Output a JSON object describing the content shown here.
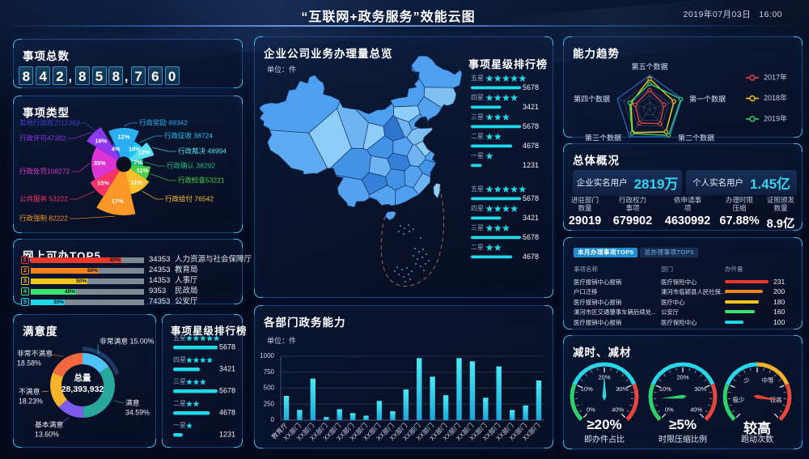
{
  "header": {
    "title": "“互联网+政务服务”效能云图",
    "date": "2019年07月03日",
    "time": "16:00"
  },
  "panels": {
    "total": {
      "title": "事项总数",
      "value": "842,858,760"
    },
    "types": {
      "title": "事项类型"
    },
    "online_top5": {
      "title": "网上可办TOP5"
    },
    "satisfaction": {
      "title": "满意度"
    },
    "star_rank_left": {
      "title": "事项星级排行榜"
    },
    "map": {
      "title": "企业公司业务办理量总览",
      "unit": "单位：件",
      "list_title": "事项星级排行榜"
    },
    "dept": {
      "title": "各部门政务能力",
      "unit": "单位：件"
    },
    "radar": {
      "title": "能力趋势"
    },
    "overview": {
      "title": "总体概况",
      "boxes": [
        {
          "label": "企业实名用户",
          "value": "2819万"
        },
        {
          "label": "个人实名用户",
          "value": "1.45亿"
        }
      ],
      "stats": [
        {
          "line1": "进驻部门",
          "line2": "数量",
          "value": "29019"
        },
        {
          "line1": "行政权力",
          "line2": "事项",
          "value": "679902"
        },
        {
          "line1": "依申请事",
          "line2": "项",
          "value": "4630992"
        },
        {
          "line1": "办理时限",
          "line2": "压缩",
          "value": "67.88%"
        },
        {
          "line1": "证照颁发",
          "line2": "数量",
          "value": "8.9亿"
        }
      ]
    },
    "top_table": {
      "tabs": [
        "本月办理事项TOP5",
        "总办理事项TOP5"
      ],
      "active_tab": 0
    },
    "gauges": {
      "title": "减时、减材"
    }
  },
  "chart_data": [
    {
      "id": "item_types_rose",
      "type": "pie",
      "title": "事项类型",
      "items": [
        {
          "label": "行政奖励",
          "value": 89342,
          "percent": "12%",
          "color": "#29aef2",
          "radius": 45
        },
        {
          "label": "行政征收",
          "value": 38724,
          "percent": "10%",
          "color": "#21c4f5",
          "radius": 31
        },
        {
          "label": "行政裁决",
          "value": 48994,
          "percent": "12%",
          "color": "#58dff2",
          "radius": 39
        },
        {
          "label": "行政确认",
          "value": 38292,
          "percent": "7%",
          "color": "#20bd7e",
          "radius": 24
        },
        {
          "label": "行政检查",
          "value": 53221,
          "percent": "11%",
          "color": "#49d249",
          "radius": 33
        },
        {
          "label": "行政给付",
          "value": 76542,
          "percent": "11%",
          "color": "#fbc02d",
          "radius": 38
        },
        {
          "label": "行政强制",
          "value": 82222,
          "percent": "17%",
          "color": "#fb9827",
          "radius": 63
        },
        {
          "label": "公共服务",
          "value": 53222,
          "percent": "15%",
          "color": "#f8336a",
          "radius": 47
        },
        {
          "label": "行政处罚",
          "value": 108272,
          "percent": "35%",
          "color": "#dd35d5",
          "radius": 40
        },
        {
          "label": "行政许可",
          "value": 47382,
          "percent": "16%",
          "color": "#9137ef",
          "radius": 54
        },
        {
          "label": "其他行政权力",
          "value": 12382,
          "percent": "4%",
          "color": "#3d3fd4",
          "radius": 28
        }
      ],
      "label_texts": [
        "行政奖励 89342",
        "行政征收 38724",
        "行政裁决 48994",
        "行政确认 38292",
        "行政检查53221",
        "行政给付 76542",
        "行政强制 82222",
        "公共服务 53222",
        "行政处罚108272",
        "行政许可47382",
        "其他行政权力12382"
      ]
    },
    {
      "id": "online_top5_bars",
      "type": "bar",
      "title": "网上可办TOP5",
      "rows": [
        {
          "rank": "1",
          "percent": 80,
          "value": "34353",
          "department": "人力资源与社会保障厅",
          "color": "#e8392c"
        },
        {
          "rank": "2",
          "percent": 60,
          "value": "24353",
          "department": "教育局",
          "color": "#f5821f"
        },
        {
          "rank": "3",
          "percent": 50,
          "value": "14353",
          "department": "人事厅",
          "color": "#f5c51f"
        },
        {
          "rank": "4",
          "percent": 40,
          "value": "9353",
          "department": "民政局",
          "color": "#3ee06e"
        },
        {
          "rank": "5",
          "percent": 30,
          "value": "74353",
          "department": "公安厅",
          "color": "#1fd8e8"
        }
      ]
    },
    {
      "id": "satisfaction_donut",
      "type": "pie",
      "title": "满意度",
      "center": {
        "label": "总量",
        "value": "28,393,932"
      },
      "slices": [
        {
          "label": "非常满意",
          "percent_label": "15.00%",
          "value": 15.0,
          "color": "#4fc3f7"
        },
        {
          "label": "满意",
          "percent_label": "34.59%",
          "value": 34.59,
          "color": "#2aa79b"
        },
        {
          "label": "基本满意",
          "percent_label": "13.60%",
          "value": 13.6,
          "color": "#7e5bef"
        },
        {
          "label": "不满意",
          "percent_label": "18.23%",
          "value": 18.23,
          "color": "#f5b32c"
        },
        {
          "label": "非常不满意",
          "percent_label": "18.58%",
          "value": 18.58,
          "color": "#f2693f"
        }
      ]
    },
    {
      "id": "star_rating_left",
      "type": "bar",
      "title": "事项星级排行榜",
      "rows": [
        {
          "label": "五星",
          "stars": 5,
          "value": "5678"
        },
        {
          "label": "四星",
          "stars": 4,
          "value": "3421"
        },
        {
          "label": "三星",
          "stars": 3,
          "value": "5678"
        },
        {
          "label": "二星",
          "stars": 2,
          "value": "4678"
        },
        {
          "label": "一星",
          "stars": 1,
          "value": "1231"
        }
      ]
    },
    {
      "id": "map_star_rating",
      "type": "bar",
      "title": "事项星级排行榜",
      "rows": [
        {
          "label": "五星",
          "stars": 5,
          "value": "5678"
        },
        {
          "label": "四星",
          "stars": 4,
          "value": "3421"
        },
        {
          "label": "三星",
          "stars": 3,
          "value": "5678"
        },
        {
          "label": "二星",
          "stars": 2,
          "value": "4678"
        },
        {
          "label": "一星",
          "stars": 1,
          "value": "1231"
        },
        {
          "label": "五星",
          "stars": 5,
          "value": "5678"
        },
        {
          "label": "四星",
          "stars": 4,
          "value": "3421"
        },
        {
          "label": "三星",
          "stars": 3,
          "value": "5678"
        },
        {
          "label": "二星",
          "stars": 2,
          "value": "4678"
        }
      ]
    },
    {
      "id": "dept_capability",
      "type": "bar",
      "title": "各部门政务能力",
      "unit": "单位：件",
      "categories": [
        "教育厅",
        "XX部门",
        "XX部门",
        "XX部门",
        "XX部门",
        "XX部门",
        "XX部门",
        "XX部门",
        "XX部门",
        "XX部门",
        "XX部门",
        "XX部门",
        "XX部门",
        "XX部门",
        "XX部门",
        "XX部门",
        "XX部门",
        "XX部门",
        "XX部门",
        "XX部门"
      ],
      "values": [
        380,
        160,
        650,
        50,
        170,
        110,
        70,
        300,
        140,
        480,
        970,
        680,
        390,
        970,
        920,
        350,
        840,
        160,
        230,
        620
      ],
      "ylim": [
        0,
        1000
      ],
      "yticks": [
        0,
        250,
        500,
        750,
        1000
      ]
    },
    {
      "id": "capability_radar",
      "type": "radar",
      "title": "能力趋势",
      "axes": [
        "第五个数据",
        "第一个数据",
        "第二个数据",
        "第三个数据",
        "第四个数据"
      ],
      "max": 1,
      "series": [
        {
          "name": "2017年",
          "color": "#e54445",
          "values": [
            0.56,
            0.45,
            0.52,
            0.5,
            0.45
          ]
        },
        {
          "name": "2018年",
          "color": "#f5c718",
          "values": [
            0.9,
            0.75,
            0.82,
            0.85,
            0.58
          ]
        },
        {
          "name": "2019年",
          "color": "#2ed06c",
          "values": [
            0.75,
            0.97,
            0.95,
            0.88,
            0.62
          ]
        }
      ]
    },
    {
      "id": "top_items_table",
      "type": "table",
      "tabs": [
        "本月办理事项TOP5",
        "总办理事项TOP5"
      ],
      "headers": [
        "事项名称",
        "部门",
        "办件量"
      ],
      "rows": [
        {
          "name": "医疗报销中心报销",
          "department": "医疗保险中心",
          "value": 231,
          "color": "#e8392c"
        },
        {
          "name": "户口迁移",
          "department": "漯河市临颍县人民社保...",
          "value": 200,
          "color": "#f5821f"
        },
        {
          "name": "医疗报销中心报销",
          "department": "医疗中心",
          "value": 180,
          "color": "#f5c51f"
        },
        {
          "name": "漯河市区交通肇事车辆后续处...",
          "department": "公安厅",
          "value": 160,
          "color": "#3ee06e"
        },
        {
          "name": "医疗报销中心报销",
          "department": "医疗保险中心",
          "value": 100,
          "color": "#1fd8e8"
        }
      ]
    },
    {
      "id": "reduction_gauges",
      "type": "gauge",
      "title": "减时、减材",
      "gauges": [
        {
          "tick_labels": [
            "0%",
            "10%",
            "20%",
            "30%",
            "40%"
          ],
          "needle": 0.5,
          "needle_color": "#29d5e8",
          "zones": [
            [
              0.25,
              "#2ed06c"
            ],
            [
              0.75,
              "#29d5e8"
            ],
            [
              1,
              "#e8453c"
            ]
          ],
          "value": "≥20%",
          "caption": "即办件占比"
        },
        {
          "tick_labels": [
            "0%",
            "10%",
            "20%",
            "30%",
            "40%"
          ],
          "needle": 0.15,
          "needle_color": "#2ed06c",
          "zones": [
            [
              0.25,
              "#2ed06c"
            ],
            [
              0.75,
              "#29d5e8"
            ],
            [
              1,
              "#e8453c"
            ]
          ],
          "value": "≥5%",
          "caption": "时限压缩比例"
        },
        {
          "zone_labels": [
            "极少",
            "少",
            "中等",
            "较高"
          ],
          "needle": 0.87,
          "needle_color": "#e8453c",
          "zones": [
            [
              0.25,
              "#2ed06c"
            ],
            [
              0.5,
              "#29d5e8"
            ],
            [
              0.75,
              "#f5b32c"
            ],
            [
              1,
              "#e8453c"
            ]
          ],
          "value": "较高",
          "caption": "跑动次数"
        }
      ]
    }
  ]
}
